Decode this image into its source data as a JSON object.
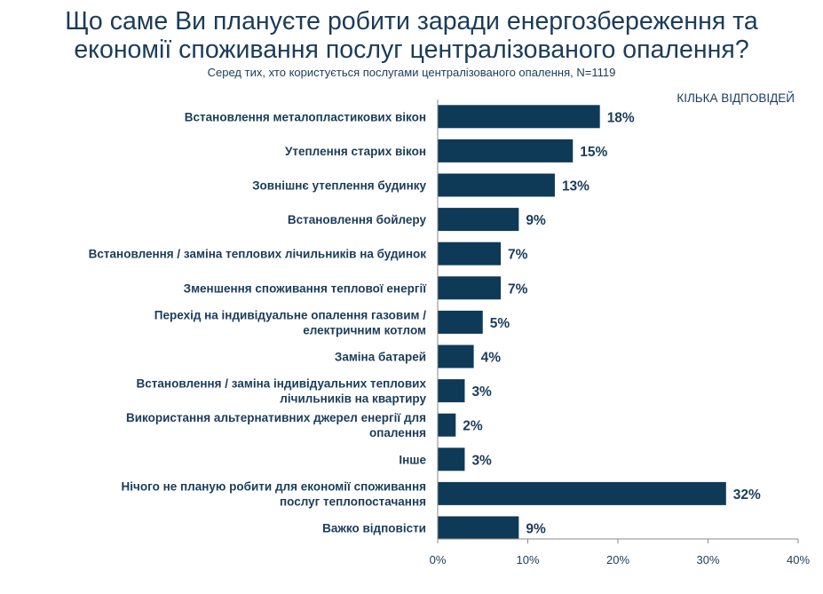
{
  "header": {
    "title_line1": "Що саме Ви плануєте робити заради енергозбереження та",
    "title_line2": "економії споживання послуг централізованого опалення?",
    "subtitle": "Серед тих, хто користується послугами централізованого опалення, N=1119",
    "note": "КІЛЬКА ВІДПОВІДЕЙ"
  },
  "colors": {
    "bar": "#0e3a57",
    "text": "#1b3c5a",
    "axis": "#8a8a8a"
  },
  "chart_data": {
    "type": "bar",
    "orientation": "horizontal",
    "categories": [
      [
        "Встановлення металопластикових вікон"
      ],
      [
        "Утеплення старих вікон"
      ],
      [
        "Зовнішнє утеплення будинку"
      ],
      [
        "Встановлення бойлеру"
      ],
      [
        "Встановлення / заміна теплових лічильників на будинок"
      ],
      [
        "Зменшення споживання теплової енергії"
      ],
      [
        "Перехід на індивідуальне опалення газовим /",
        "електричним котлом"
      ],
      [
        "Заміна батарей"
      ],
      [
        "Встановлення / заміна індивідуальних теплових",
        "лічильників на квартиру"
      ],
      [
        "Використання альтернативних джерел енергії для",
        "опалення"
      ],
      [
        "Інше"
      ],
      [
        "Нічого не планую робити для економії споживання",
        "послуг теплопостачання"
      ],
      [
        "Важко відповісти"
      ]
    ],
    "values": [
      18,
      15,
      13,
      9,
      7,
      7,
      5,
      4,
      3,
      2,
      3,
      32,
      9
    ],
    "value_labels": [
      "18%",
      "15%",
      "13%",
      "9%",
      "7%",
      "7%",
      "5%",
      "4%",
      "3%",
      "2%",
      "3%",
      "32%",
      "9%"
    ],
    "xlim": [
      0,
      40
    ],
    "xticks": [
      0,
      10,
      20,
      30,
      40
    ],
    "xtick_labels": [
      "0%",
      "10%",
      "20%",
      "30%",
      "40%"
    ],
    "grid": false
  }
}
